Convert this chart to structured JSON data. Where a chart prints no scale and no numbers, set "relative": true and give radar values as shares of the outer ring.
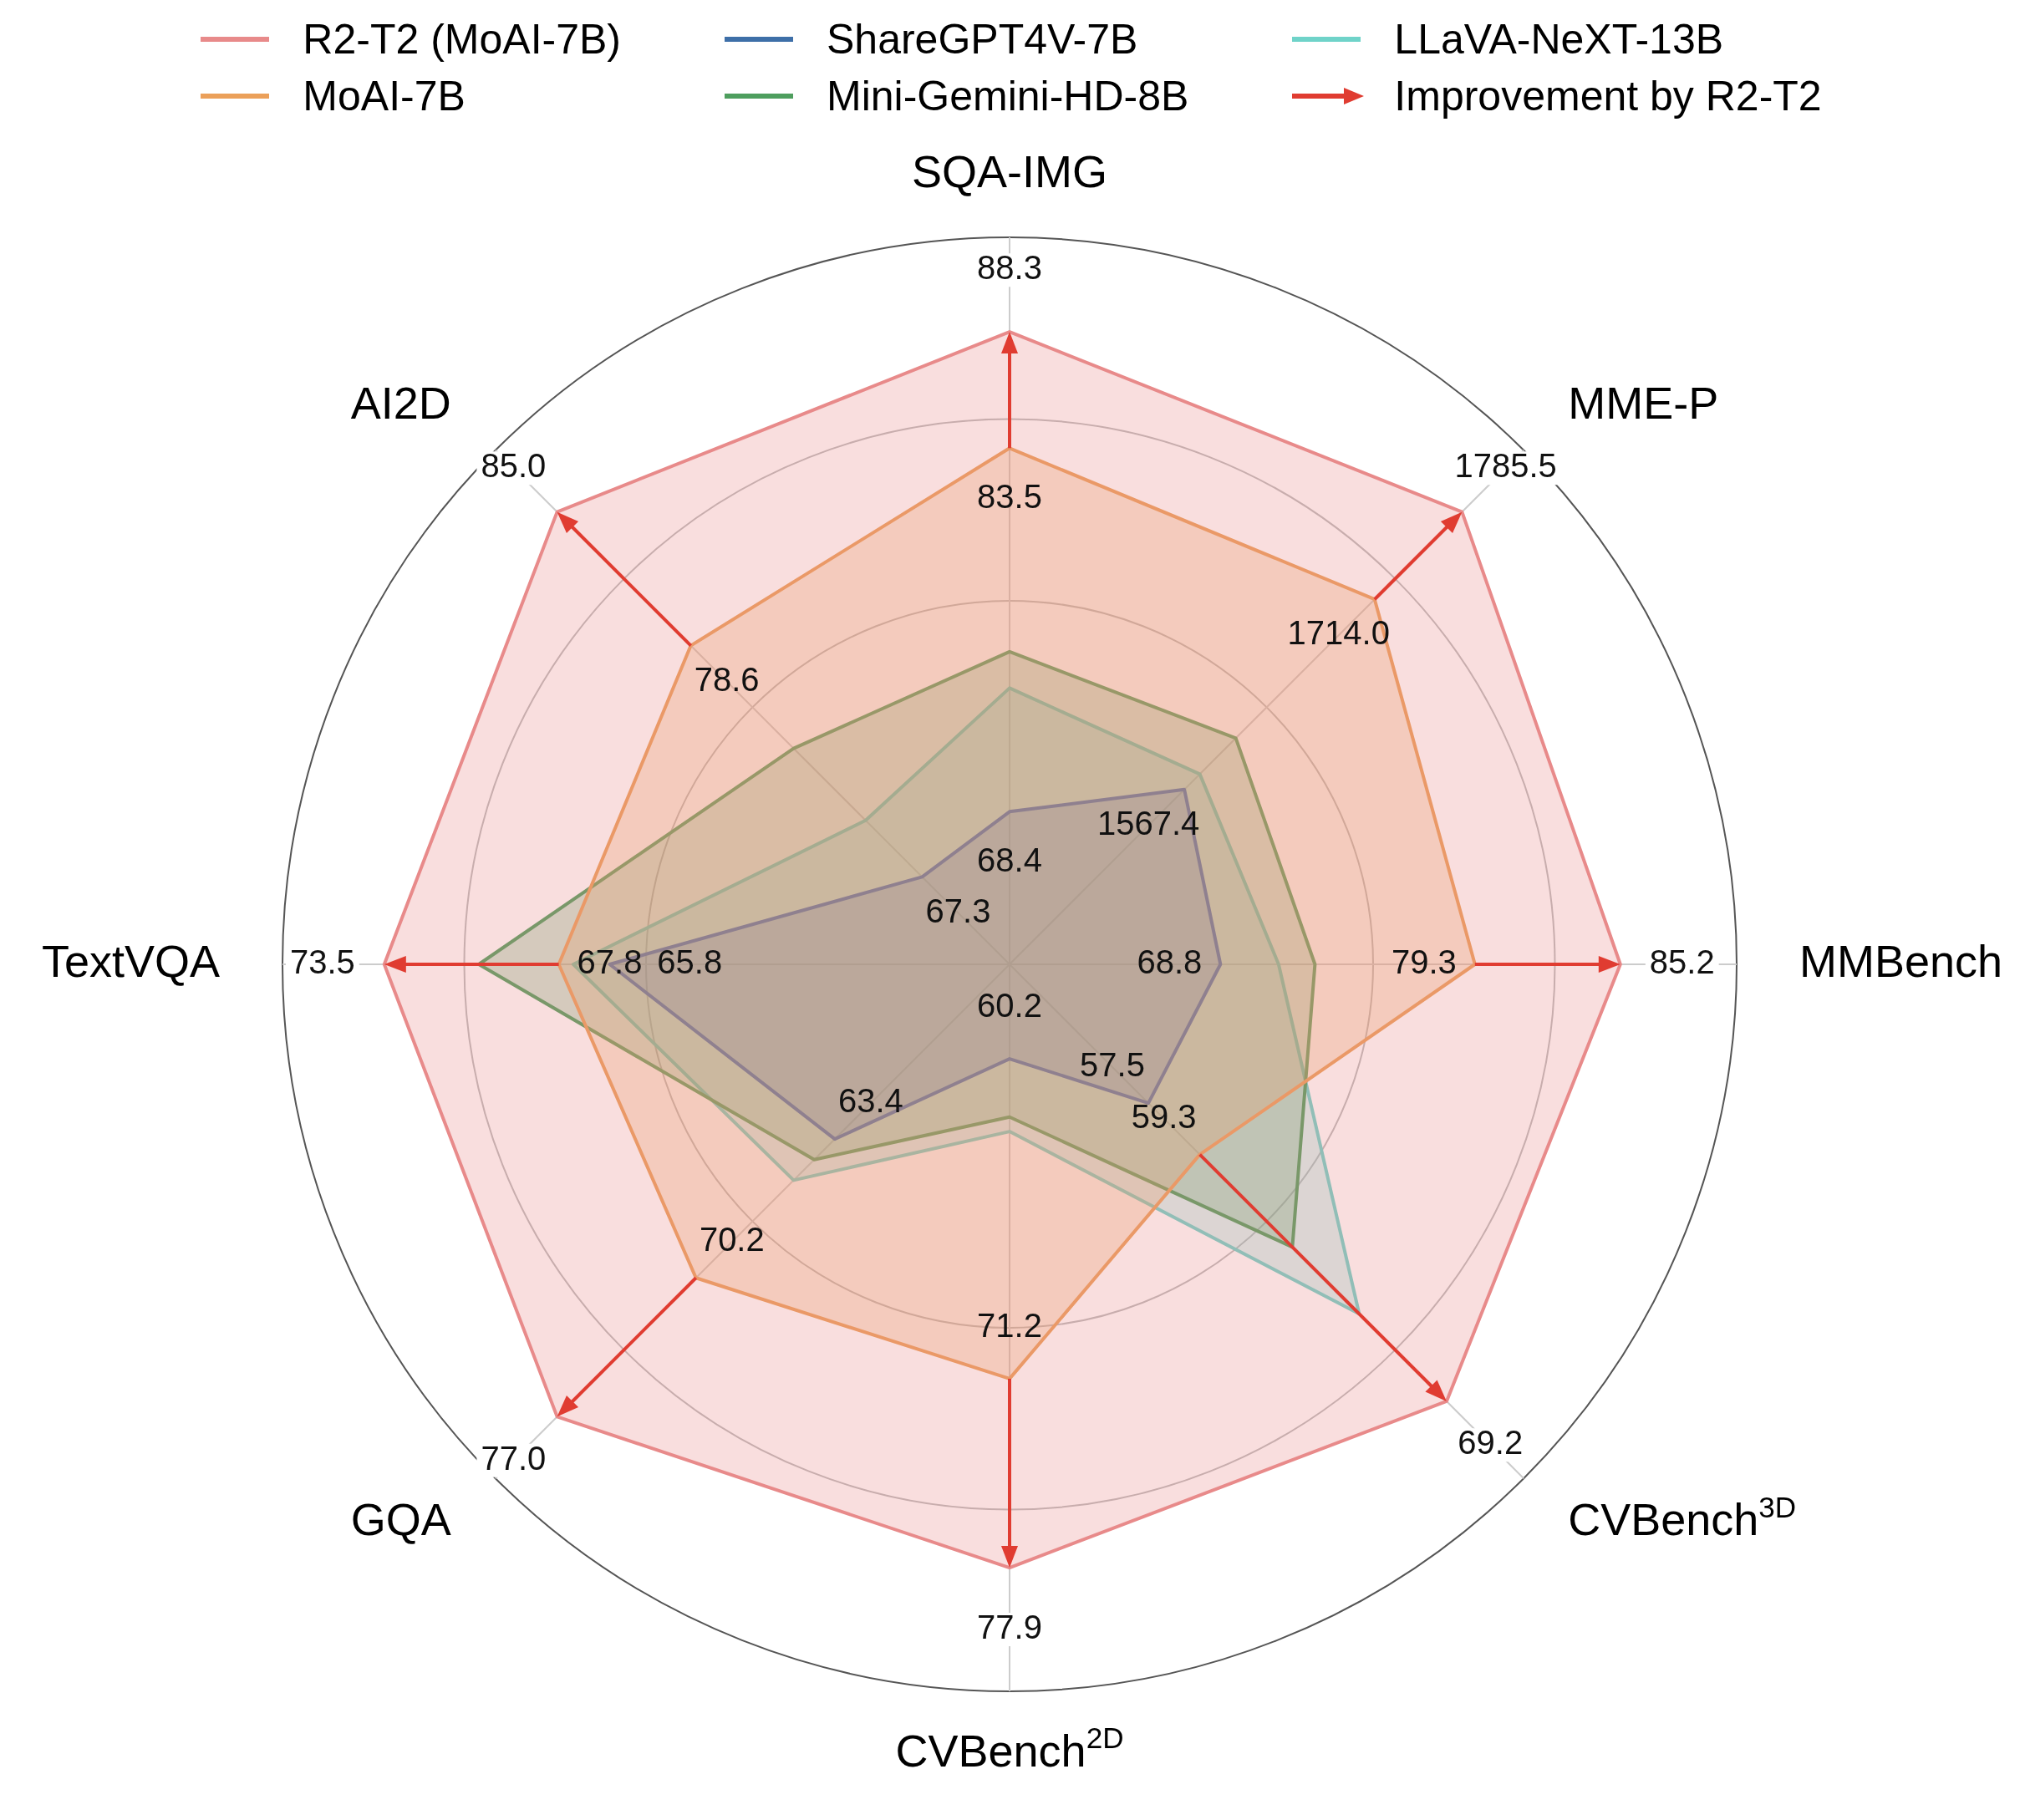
{
  "chart_data": {
    "type": "radar",
    "relative": true,
    "grid": true,
    "legend": "top",
    "marker": "none",
    "categories": [
      "SQA-IMG",
      "MME-P",
      "MMBench",
      "CVBench$^{3D}$",
      "CVBench$^{2D}$",
      "GQA",
      "TextVQA",
      "AI2D"
    ],
    "series": [
      {
        "name": "R2-T2 (MoAI-7B)",
        "color": "#e88a8a",
        "values": [
          0.87,
          0.88,
          0.84,
          0.85,
          0.83,
          0.88,
          0.86,
          0.88
        ]
      },
      {
        "name": "MoAI-7B",
        "color": "#eba05a",
        "values": [
          0.71,
          0.71,
          0.64,
          0.37,
          0.57,
          0.61,
          0.62,
          0.62
        ]
      },
      {
        "name": "ShareGPT4V-7B",
        "color": "#3e6fa8",
        "values": [
          0.21,
          0.34,
          0.29,
          0.27,
          0.13,
          0.34,
          0.55,
          0.17
        ]
      },
      {
        "name": "Mini-Gemini-HD-8B",
        "color": "#4e9e5e",
        "values": [
          0.43,
          0.44,
          0.42,
          0.55,
          0.21,
          0.38,
          0.73,
          0.42
        ]
      },
      {
        "name": "LLaVA-NeXT-13B",
        "color": "#6fd3c9",
        "values": [
          0.38,
          0.37,
          0.37,
          0.68,
          0.23,
          0.42,
          0.6,
          0.28
        ]
      },
      {
        "name": "Improvement by R2-T2",
        "type": "other",
        "color": "#e03c31",
        "values": [
          null,
          null,
          null,
          null,
          null,
          null,
          null,
          null
        ]
      }
    ],
    "annotations": [
      {
        "text": "88.3",
        "x": "SQA-IMG"
      },
      {
        "text": "1785.5",
        "x": "MME-P"
      },
      {
        "text": "85.2",
        "x": "MMBench"
      },
      {
        "text": "69.2",
        "x": "CVBench$^{3D}$"
      },
      {
        "text": "77.9",
        "x": "CVBench$^{2D}$"
      },
      {
        "text": "77.0",
        "x": "GQA"
      },
      {
        "text": "73.5",
        "x": "TextVQA"
      },
      {
        "text": "85.0",
        "x": "AI2D"
      },
      {
        "text": "83.5",
        "x": "SQA-IMG"
      },
      {
        "text": "1714.0",
        "x": "MME-P"
      },
      {
        "text": "79.3",
        "x": "MMBench"
      },
      {
        "text": "59.3",
        "x": "CVBench$^{3D}$"
      },
      {
        "text": "71.2",
        "x": "CVBench$^{2D}$"
      },
      {
        "text": "70.2",
        "x": "GQA"
      },
      {
        "text": "67.8",
        "x": "TextVQA"
      },
      {
        "text": "78.6",
        "x": "AI2D"
      },
      {
        "text": "68.4",
        "x": "SQA-IMG"
      },
      {
        "text": "1567.4",
        "x": "MME-P"
      },
      {
        "text": "68.8",
        "x": "MMBench"
      },
      {
        "text": "57.5",
        "x": "CVBench$^{3D}$"
      },
      {
        "text": "60.2",
        "x": "CVBench$^{2D}$"
      },
      {
        "text": "63.4",
        "x": "GQA"
      },
      {
        "text": "65.8",
        "x": "TextVQA"
      },
      {
        "text": "67.3",
        "x": "AI2D"
      }
    ]
  }
}
